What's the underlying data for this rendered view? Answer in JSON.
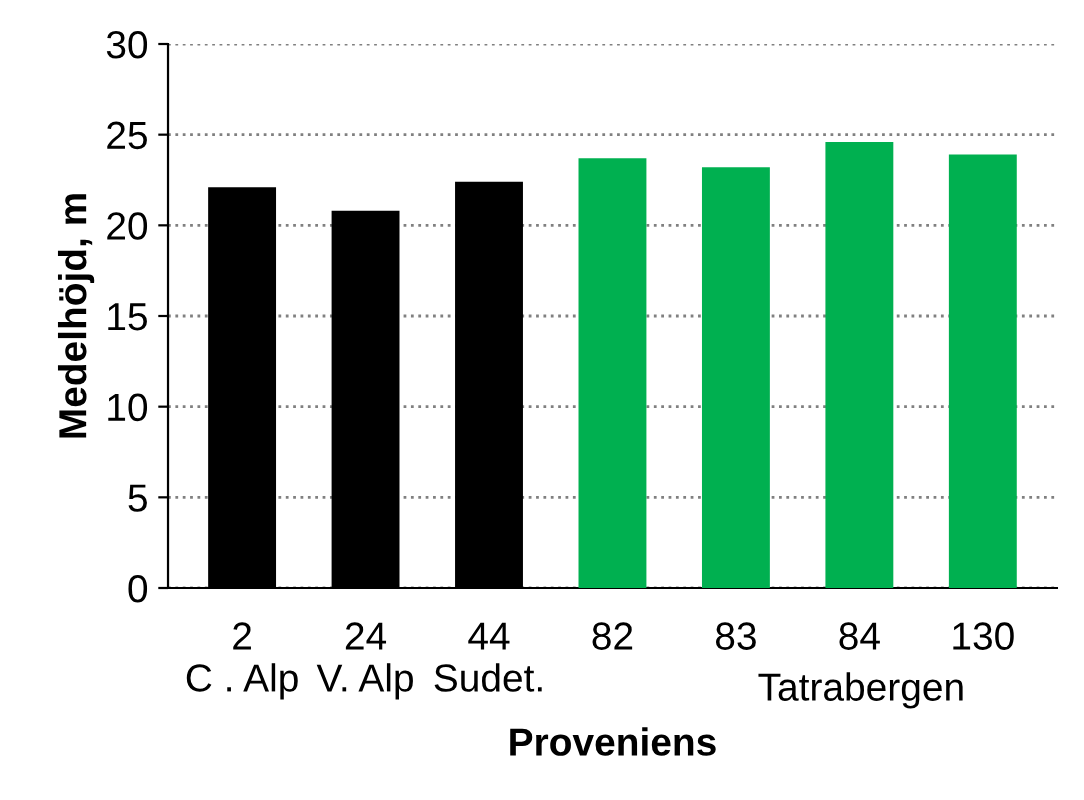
{
  "chart_data": {
    "type": "bar",
    "categories": [
      "2\nC . Alp",
      "24\nV. Alp",
      "44\nSudet.",
      "82",
      "83",
      "84",
      "130"
    ],
    "values": [
      22.1,
      20.8,
      22.4,
      23.7,
      23.2,
      24.6,
      23.9
    ],
    "colors": [
      "#000000",
      "#000000",
      "#000000",
      "#00b050",
      "#00b050",
      "#00b050",
      "#00b050"
    ],
    "xlabel": "Proveniens",
    "ylabel": "Medelhöjd, m",
    "annotations": [
      "Tatrabergen"
    ],
    "ylim": [
      0,
      30
    ],
    "yticks": [
      0,
      5,
      10,
      15,
      20,
      25,
      30
    ],
    "grid": "y"
  }
}
